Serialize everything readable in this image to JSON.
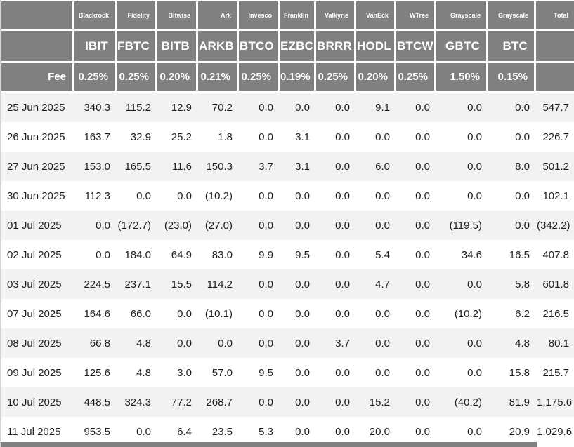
{
  "colors": {
    "header_bg": "#808080",
    "header_text": "#ffffff",
    "stripe": "#f2f2f2",
    "negative": "#fa2b2b",
    "text": "#1e1e1e"
  },
  "chart_data": {
    "type": "table",
    "providers": [
      "Blackrock",
      "Fidelity",
      "Bitwise",
      "Ark",
      "Invesco",
      "Franklin",
      "Valkyrie",
      "VanEck",
      "WTree",
      "Grayscale",
      "Grayscale"
    ],
    "tickers": [
      "IBIT",
      "FBTC",
      "BITB",
      "ARKB",
      "BTCO",
      "EZBC",
      "BRRR",
      "HODL",
      "BTCW",
      "GBTC",
      "BTC"
    ],
    "fee_label": "Fee",
    "fees": [
      "0.25%",
      "0.25%",
      "0.20%",
      "0.21%",
      "0.25%",
      "0.19%",
      "0.25%",
      "0.20%",
      "0.25%",
      "1.50%",
      "0.15%"
    ],
    "total_label": "Total",
    "rows": [
      {
        "date": "25 Jun 2025",
        "values": [
          "340.3",
          "115.2",
          "12.9",
          "70.2",
          "0.0",
          "0.0",
          "0.0",
          "9.1",
          "0.0",
          "0.0",
          "0.0"
        ],
        "total": "547.7"
      },
      {
        "date": "26 Jun 2025",
        "values": [
          "163.7",
          "32.9",
          "25.2",
          "1.8",
          "0.0",
          "3.1",
          "0.0",
          "0.0",
          "0.0",
          "0.0",
          "0.0"
        ],
        "total": "226.7"
      },
      {
        "date": "27 Jun 2025",
        "values": [
          "153.0",
          "165.5",
          "11.6",
          "150.3",
          "3.7",
          "3.1",
          "0.0",
          "6.0",
          "0.0",
          "0.0",
          "8.0"
        ],
        "total": "501.2"
      },
      {
        "date": "30 Jun 2025",
        "values": [
          "112.3",
          "0.0",
          "0.0",
          "(10.2)",
          "0.0",
          "0.0",
          "0.0",
          "0.0",
          "0.0",
          "0.0",
          "0.0"
        ],
        "total": "102.1"
      },
      {
        "date": "01 Jul 2025",
        "values": [
          "0.0",
          "(172.7)",
          "(23.0)",
          "(27.0)",
          "0.0",
          "0.0",
          "0.0",
          "0.0",
          "0.0",
          "(119.5)",
          "0.0"
        ],
        "total": "(342.2)"
      },
      {
        "date": "02 Jul 2025",
        "values": [
          "0.0",
          "184.0",
          "64.9",
          "83.0",
          "9.9",
          "9.5",
          "0.0",
          "5.4",
          "0.0",
          "34.6",
          "16.5"
        ],
        "total": "407.8"
      },
      {
        "date": "03 Jul 2025",
        "values": [
          "224.5",
          "237.1",
          "15.5",
          "114.2",
          "0.0",
          "0.0",
          "0.0",
          "4.7",
          "0.0",
          "0.0",
          "5.8"
        ],
        "total": "601.8"
      },
      {
        "date": "07 Jul 2025",
        "values": [
          "164.6",
          "66.0",
          "0.0",
          "(10.1)",
          "0.0",
          "0.0",
          "0.0",
          "0.0",
          "0.0",
          "(10.2)",
          "6.2"
        ],
        "total": "216.5"
      },
      {
        "date": "08 Jul 2025",
        "values": [
          "66.8",
          "4.8",
          "0.0",
          "0.0",
          "0.0",
          "0.0",
          "3.7",
          "0.0",
          "0.0",
          "0.0",
          "4.8"
        ],
        "total": "80.1"
      },
      {
        "date": "09 Jul 2025",
        "values": [
          "125.6",
          "4.8",
          "3.0",
          "57.0",
          "9.5",
          "0.0",
          "0.0",
          "0.0",
          "0.0",
          "0.0",
          "15.8"
        ],
        "total": "215.7"
      },
      {
        "date": "10 Jul 2025",
        "values": [
          "448.5",
          "324.3",
          "77.2",
          "268.7",
          "0.0",
          "0.0",
          "0.0",
          "15.2",
          "0.0",
          "(40.2)",
          "81.9"
        ],
        "total": "1,175.6"
      },
      {
        "date": "11 Jul 2025",
        "values": [
          "953.5",
          "0.0",
          "6.4",
          "23.5",
          "5.3",
          "0.0",
          "0.0",
          "20.0",
          "0.0",
          "0.0",
          "20.9"
        ],
        "total": "1,029.6"
      }
    ]
  }
}
